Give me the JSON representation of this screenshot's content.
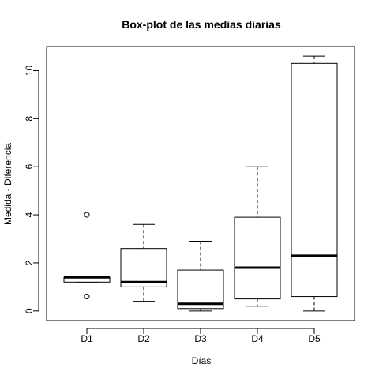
{
  "chart_data": {
    "type": "boxplot",
    "title": "Box-plot de las medias diarias",
    "xlabel": "Días",
    "ylabel": "Medida - Diferencia",
    "categories": [
      "D1",
      "D2",
      "D3",
      "D4",
      "D5"
    ],
    "ylim": [
      -0.4,
      11.0
    ],
    "yticks": [
      0,
      2,
      4,
      6,
      8,
      10
    ],
    "boxes": [
      {
        "category": "D1",
        "whisker_low": 1.2,
        "q1": 1.2,
        "median": 1.4,
        "q3": 1.4,
        "whisker_high": 1.4,
        "outliers": [
          4.0,
          0.6
        ]
      },
      {
        "category": "D2",
        "whisker_low": 0.4,
        "q1": 1.0,
        "median": 1.2,
        "q3": 2.6,
        "whisker_high": 3.6,
        "outliers": []
      },
      {
        "category": "D3",
        "whisker_low": 0.0,
        "q1": 0.1,
        "median": 0.3,
        "q3": 1.7,
        "whisker_high": 2.9,
        "outliers": []
      },
      {
        "category": "D4",
        "whisker_low": 0.2,
        "q1": 0.5,
        "median": 1.8,
        "q3": 3.9,
        "whisker_high": 6.0,
        "outliers": []
      },
      {
        "category": "D5",
        "whisker_low": 0.0,
        "q1": 0.6,
        "median": 2.3,
        "q3": 10.3,
        "whisker_high": 10.6,
        "outliers": []
      }
    ],
    "grid": false,
    "legend": "none"
  }
}
